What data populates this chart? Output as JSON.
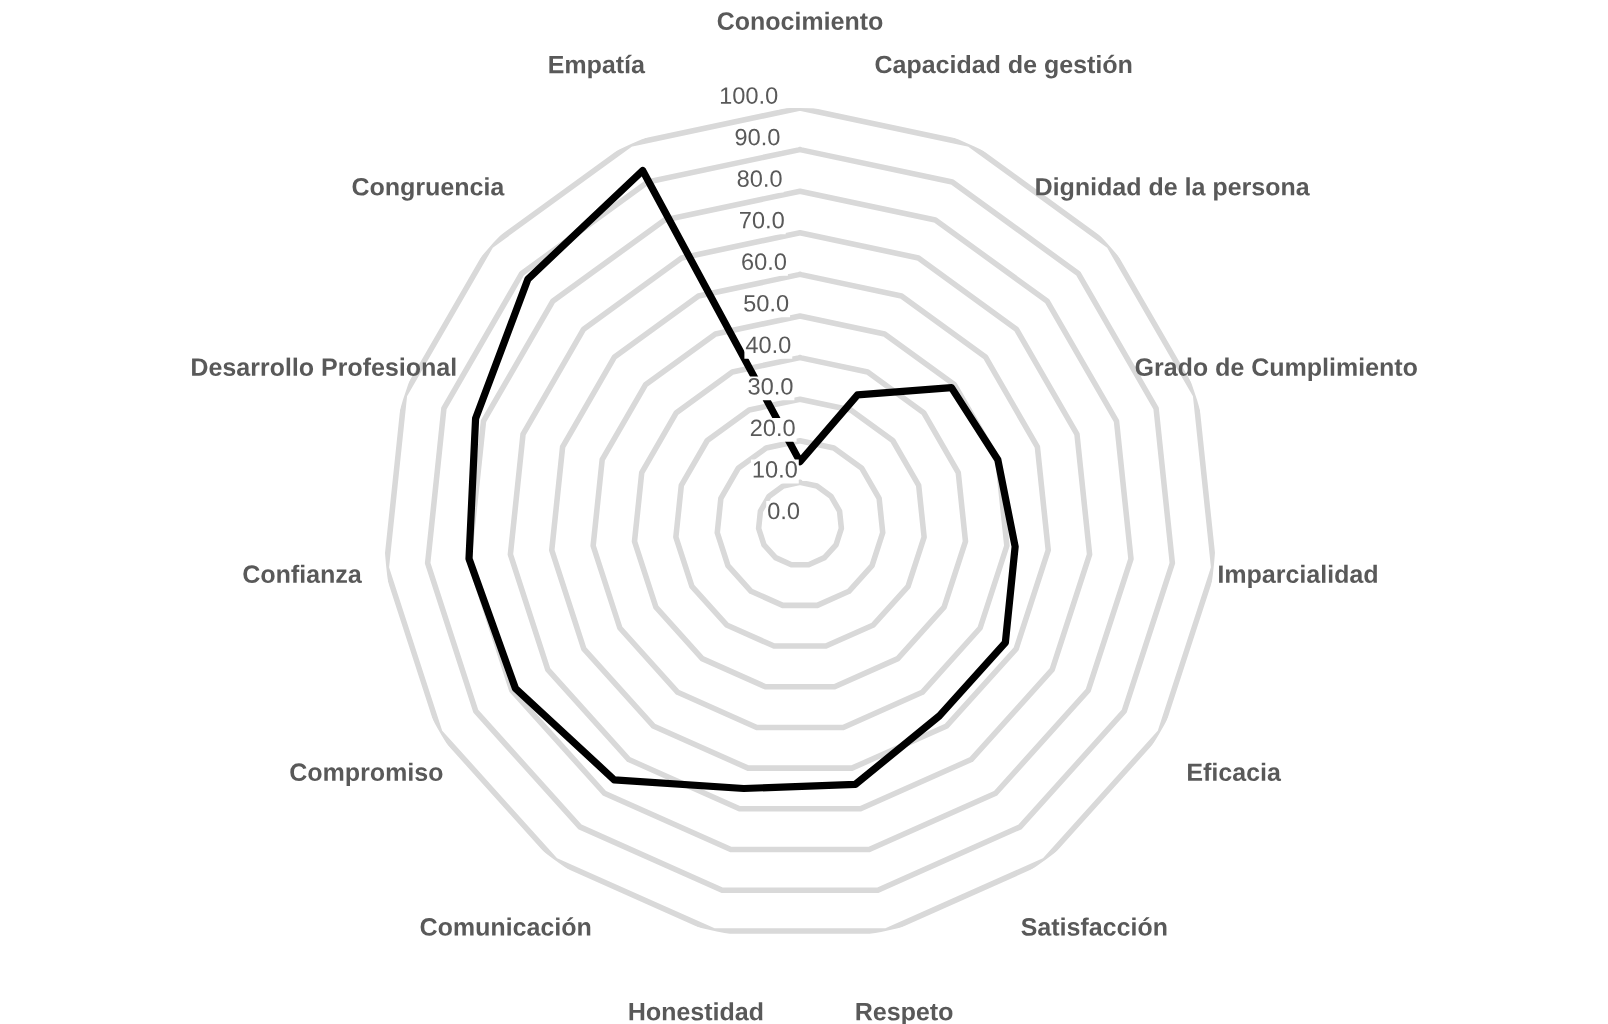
{
  "chart_data": {
    "type": "radar",
    "categories": [
      "Conocimiento",
      "Capacidad de gestión",
      "Dignidad de la persona",
      "Grado de Cumplimiento",
      "Imparcialidad",
      "Eficacia",
      "Satisfacción",
      "Respeto",
      "Honestidad",
      "Comunicación",
      "Compromiso",
      "Confianza",
      "Desarrollo Profesional",
      "Congruencia",
      "Empatía"
    ],
    "series": [
      {
        "color": "#000000",
        "values": [
          15,
          34,
          49,
          50,
          52,
          57,
          57,
          64,
          65,
          76,
          79,
          80,
          82,
          88,
          93
        ]
      }
    ],
    "ylim": [
      0,
      100
    ],
    "yticks": [
      {
        "value": 0,
        "label": "0.0"
      },
      {
        "value": 10,
        "label": "10.0"
      },
      {
        "value": 20,
        "label": "20.0"
      },
      {
        "value": 30,
        "label": "30.0"
      },
      {
        "value": 40,
        "label": "40.0"
      },
      {
        "value": 50,
        "label": "50.0"
      },
      {
        "value": 60,
        "label": "60.0"
      },
      {
        "value": 70,
        "label": "70.0"
      },
      {
        "value": 80,
        "label": "80.0"
      },
      {
        "value": 90,
        "label": "90.0"
      },
      {
        "value": 100,
        "label": "100.0"
      }
    ],
    "grid": true,
    "marker": "none",
    "line_style": "solid"
  }
}
